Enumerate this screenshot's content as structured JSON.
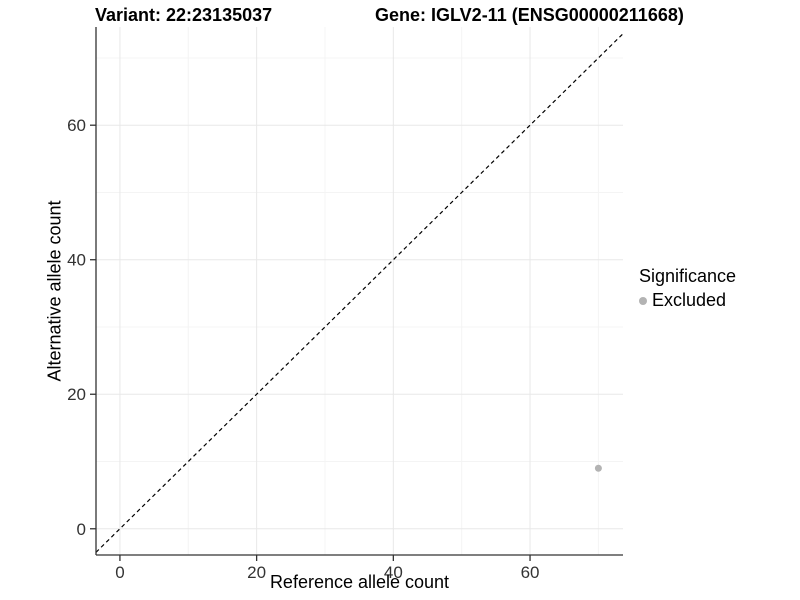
{
  "chart_data": {
    "type": "scatter",
    "title_left": "Variant: 22:23135037",
    "title_right": "Gene: IGLV2-11 (ENSG00000211668)",
    "xlabel": "Reference allele count",
    "ylabel": "Alternative allele count",
    "xlim": [
      -3.5,
      73.6
    ],
    "ylim": [
      -3.9,
      74.6
    ],
    "x_major_ticks": [
      0,
      20,
      40,
      60
    ],
    "y_major_ticks": [
      0,
      20,
      40,
      60
    ],
    "x_minor_ticks": [
      10,
      30,
      50,
      70
    ],
    "y_minor_ticks": [
      10,
      30,
      50,
      70
    ],
    "grid": "major and minor gridlines on white panel, no top/right border",
    "identity_line": {
      "slope": 1,
      "intercept": 0,
      "style": "dashed",
      "color": "#000000"
    },
    "series": [
      {
        "name": "Excluded",
        "color": "#b3b3b3",
        "points": [
          {
            "x": 70,
            "y": 9
          }
        ]
      }
    ],
    "legend": {
      "position": "right",
      "title": "Significance",
      "items": [
        {
          "label": "Excluded",
          "color": "#b3b3b3"
        }
      ]
    }
  },
  "colors": {
    "grid_major": "#e8e8e8",
    "grid_minor": "#f4f4f4",
    "axis_line": "#333333",
    "tick_label": "#333333",
    "point": "#b3b3b3",
    "title": "#000000"
  }
}
